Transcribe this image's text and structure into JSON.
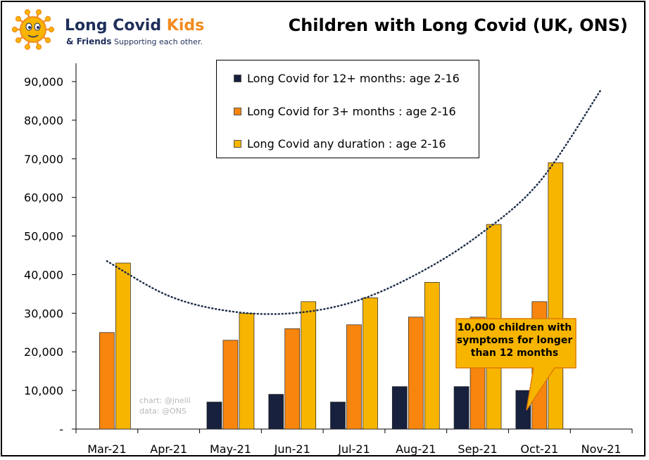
{
  "logo": {
    "name_part1": "Long Covid ",
    "name_part2": "Kids",
    "tagline_part1": "& Friends",
    "tagline_part2": " Supporting each other."
  },
  "credit": {
    "line1": "chart: @jneill",
    "line2": "data: @ONS"
  },
  "callout": {
    "text": "10,000 children with symptoms for longer than 12 months",
    "line1": "10,000 children with",
    "line2": "symptoms for longer",
    "line3": "than 12 months"
  },
  "colors": {
    "navy": "#17213d",
    "orange": "#f7850e",
    "gold": "#f7b500",
    "callout_fill": "#f7b500",
    "trend": "#1f2f4a"
  },
  "chart_data": {
    "type": "bar",
    "title": "Children with Long Covid (UK, ONS)",
    "categories": [
      "Mar-21",
      "Apr-21",
      "May-21",
      "Jun-21",
      "Jul-21",
      "Aug-21",
      "Sep-21",
      "Oct-21",
      "Nov-21"
    ],
    "series": [
      {
        "name": "Long Covid for 12+ months: age 2-16",
        "color": "#17213d",
        "values": [
          null,
          null,
          7000,
          9000,
          7000,
          11000,
          11000,
          10000,
          null
        ]
      },
      {
        "name": "Long Covid for 3+ months : age 2-16",
        "color": "#f7850e",
        "values": [
          25000,
          null,
          23000,
          26000,
          27000,
          29000,
          29000,
          33000,
          null
        ]
      },
      {
        "name": "Long Covid any duration : age 2-16",
        "color": "#f7b500",
        "values": [
          43000,
          null,
          30000,
          33000,
          34000,
          38000,
          53000,
          69000,
          null
        ]
      }
    ],
    "yticks": [
      "-",
      "10,000",
      "20,000",
      "30,000",
      "40,000",
      "50,000",
      "60,000",
      "70,000",
      "80,000",
      "90,000"
    ],
    "ytick_values": [
      0,
      10000,
      20000,
      30000,
      40000,
      50000,
      60000,
      70000,
      80000,
      90000
    ],
    "ylim": [
      0,
      95000
    ],
    "trendline": {
      "type": "polynomial",
      "style": "dotted",
      "points": [
        [
          0,
          43500
        ],
        [
          1,
          34500
        ],
        [
          2,
          30500
        ],
        [
          3,
          30000
        ],
        [
          4,
          33000
        ],
        [
          5,
          40000
        ],
        [
          6,
          50000
        ],
        [
          7,
          64000
        ],
        [
          8,
          88000
        ]
      ]
    },
    "legend_position": "top-center",
    "grid": false
  }
}
